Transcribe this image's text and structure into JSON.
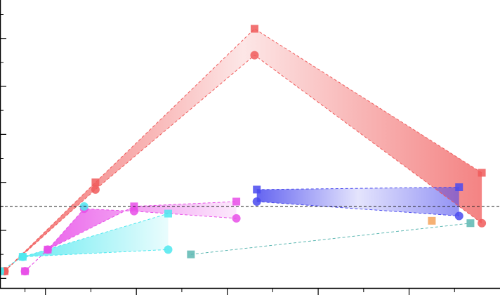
{
  "chart_data": {
    "type": "scatter",
    "title": "",
    "xlabel": "",
    "ylabel": "",
    "xlim": [
      1.0,
      12.0
    ],
    "ylim": [
      -0.34,
      0.86
    ],
    "x_major_ticks": [
      2,
      4,
      6,
      8,
      10,
      12
    ],
    "x_minor_ticks": [
      1.55,
      3,
      5,
      7,
      9,
      11
    ],
    "y_major_ticks": [
      -0.3,
      -0.1,
      0.1,
      0.3,
      0.5,
      0.7
    ],
    "y_minor_ticks": [
      -0.2,
      0.0,
      0.2,
      0.4,
      0.6,
      0.8
    ],
    "reference_line_y": 0.0,
    "grid": false,
    "legend": "none",
    "colors": {
      "red": "#f05a5a",
      "magenta": "#e84ee8",
      "cyan": "#4de8ef",
      "blue": "#4a4aee",
      "teal": "#5cb7b2",
      "orange": "#f4a35c",
      "reference": "#222222"
    },
    "bands": [
      {
        "color": "red",
        "upper": {
          "marker": "square",
          "x": [
            1.1,
            3.1,
            6.6,
            11.6
          ],
          "y": [
            -0.27,
            0.1,
            0.74,
            0.14
          ]
        },
        "lower": {
          "marker": "circle",
          "x": [
            1.1,
            3.1,
            6.6,
            11.6
          ],
          "y": [
            -0.27,
            0.07,
            0.63,
            -0.07
          ]
        }
      },
      {
        "color": "magenta",
        "upper": {
          "marker": "square",
          "x": [
            1.55,
            2.05,
            3.95,
            6.2
          ],
          "y": [
            -0.27,
            -0.18,
            0.0,
            0.02
          ]
        },
        "lower": {
          "marker": "circle",
          "x": [
            1.55,
            2.05,
            2.85,
            3.95,
            6.2
          ],
          "y": [
            -0.27,
            -0.18,
            -0.01,
            -0.02,
            -0.05
          ]
        }
      },
      {
        "color": "cyan",
        "upper": {
          "marker": "square",
          "x": [
            1.0,
            1.5,
            4.7
          ],
          "y": [
            -0.27,
            -0.21,
            -0.03
          ]
        },
        "lower": {
          "marker": "circle",
          "x": [
            1.0,
            1.5,
            4.7
          ],
          "y": [
            -0.27,
            -0.21,
            -0.18
          ]
        }
      },
      {
        "color": "blue",
        "upper": {
          "marker": "square",
          "x": [
            6.65,
            11.1
          ],
          "y": [
            0.07,
            0.08
          ]
        },
        "lower": {
          "marker": "circle",
          "x": [
            6.65,
            11.1
          ],
          "y": [
            0.02,
            -0.04
          ]
        }
      }
    ],
    "extra_series": [
      {
        "color": "cyan",
        "marker": "circle",
        "x": [
          2.85
        ],
        "y": [
          0.0
        ]
      },
      {
        "color": "teal",
        "marker": "square",
        "x": [
          5.2,
          11.35
        ],
        "y": [
          -0.2,
          -0.07
        ],
        "line": "dashed"
      },
      {
        "color": "orange",
        "marker": "square",
        "x": [
          10.5
        ],
        "y": [
          -0.06
        ]
      }
    ]
  }
}
